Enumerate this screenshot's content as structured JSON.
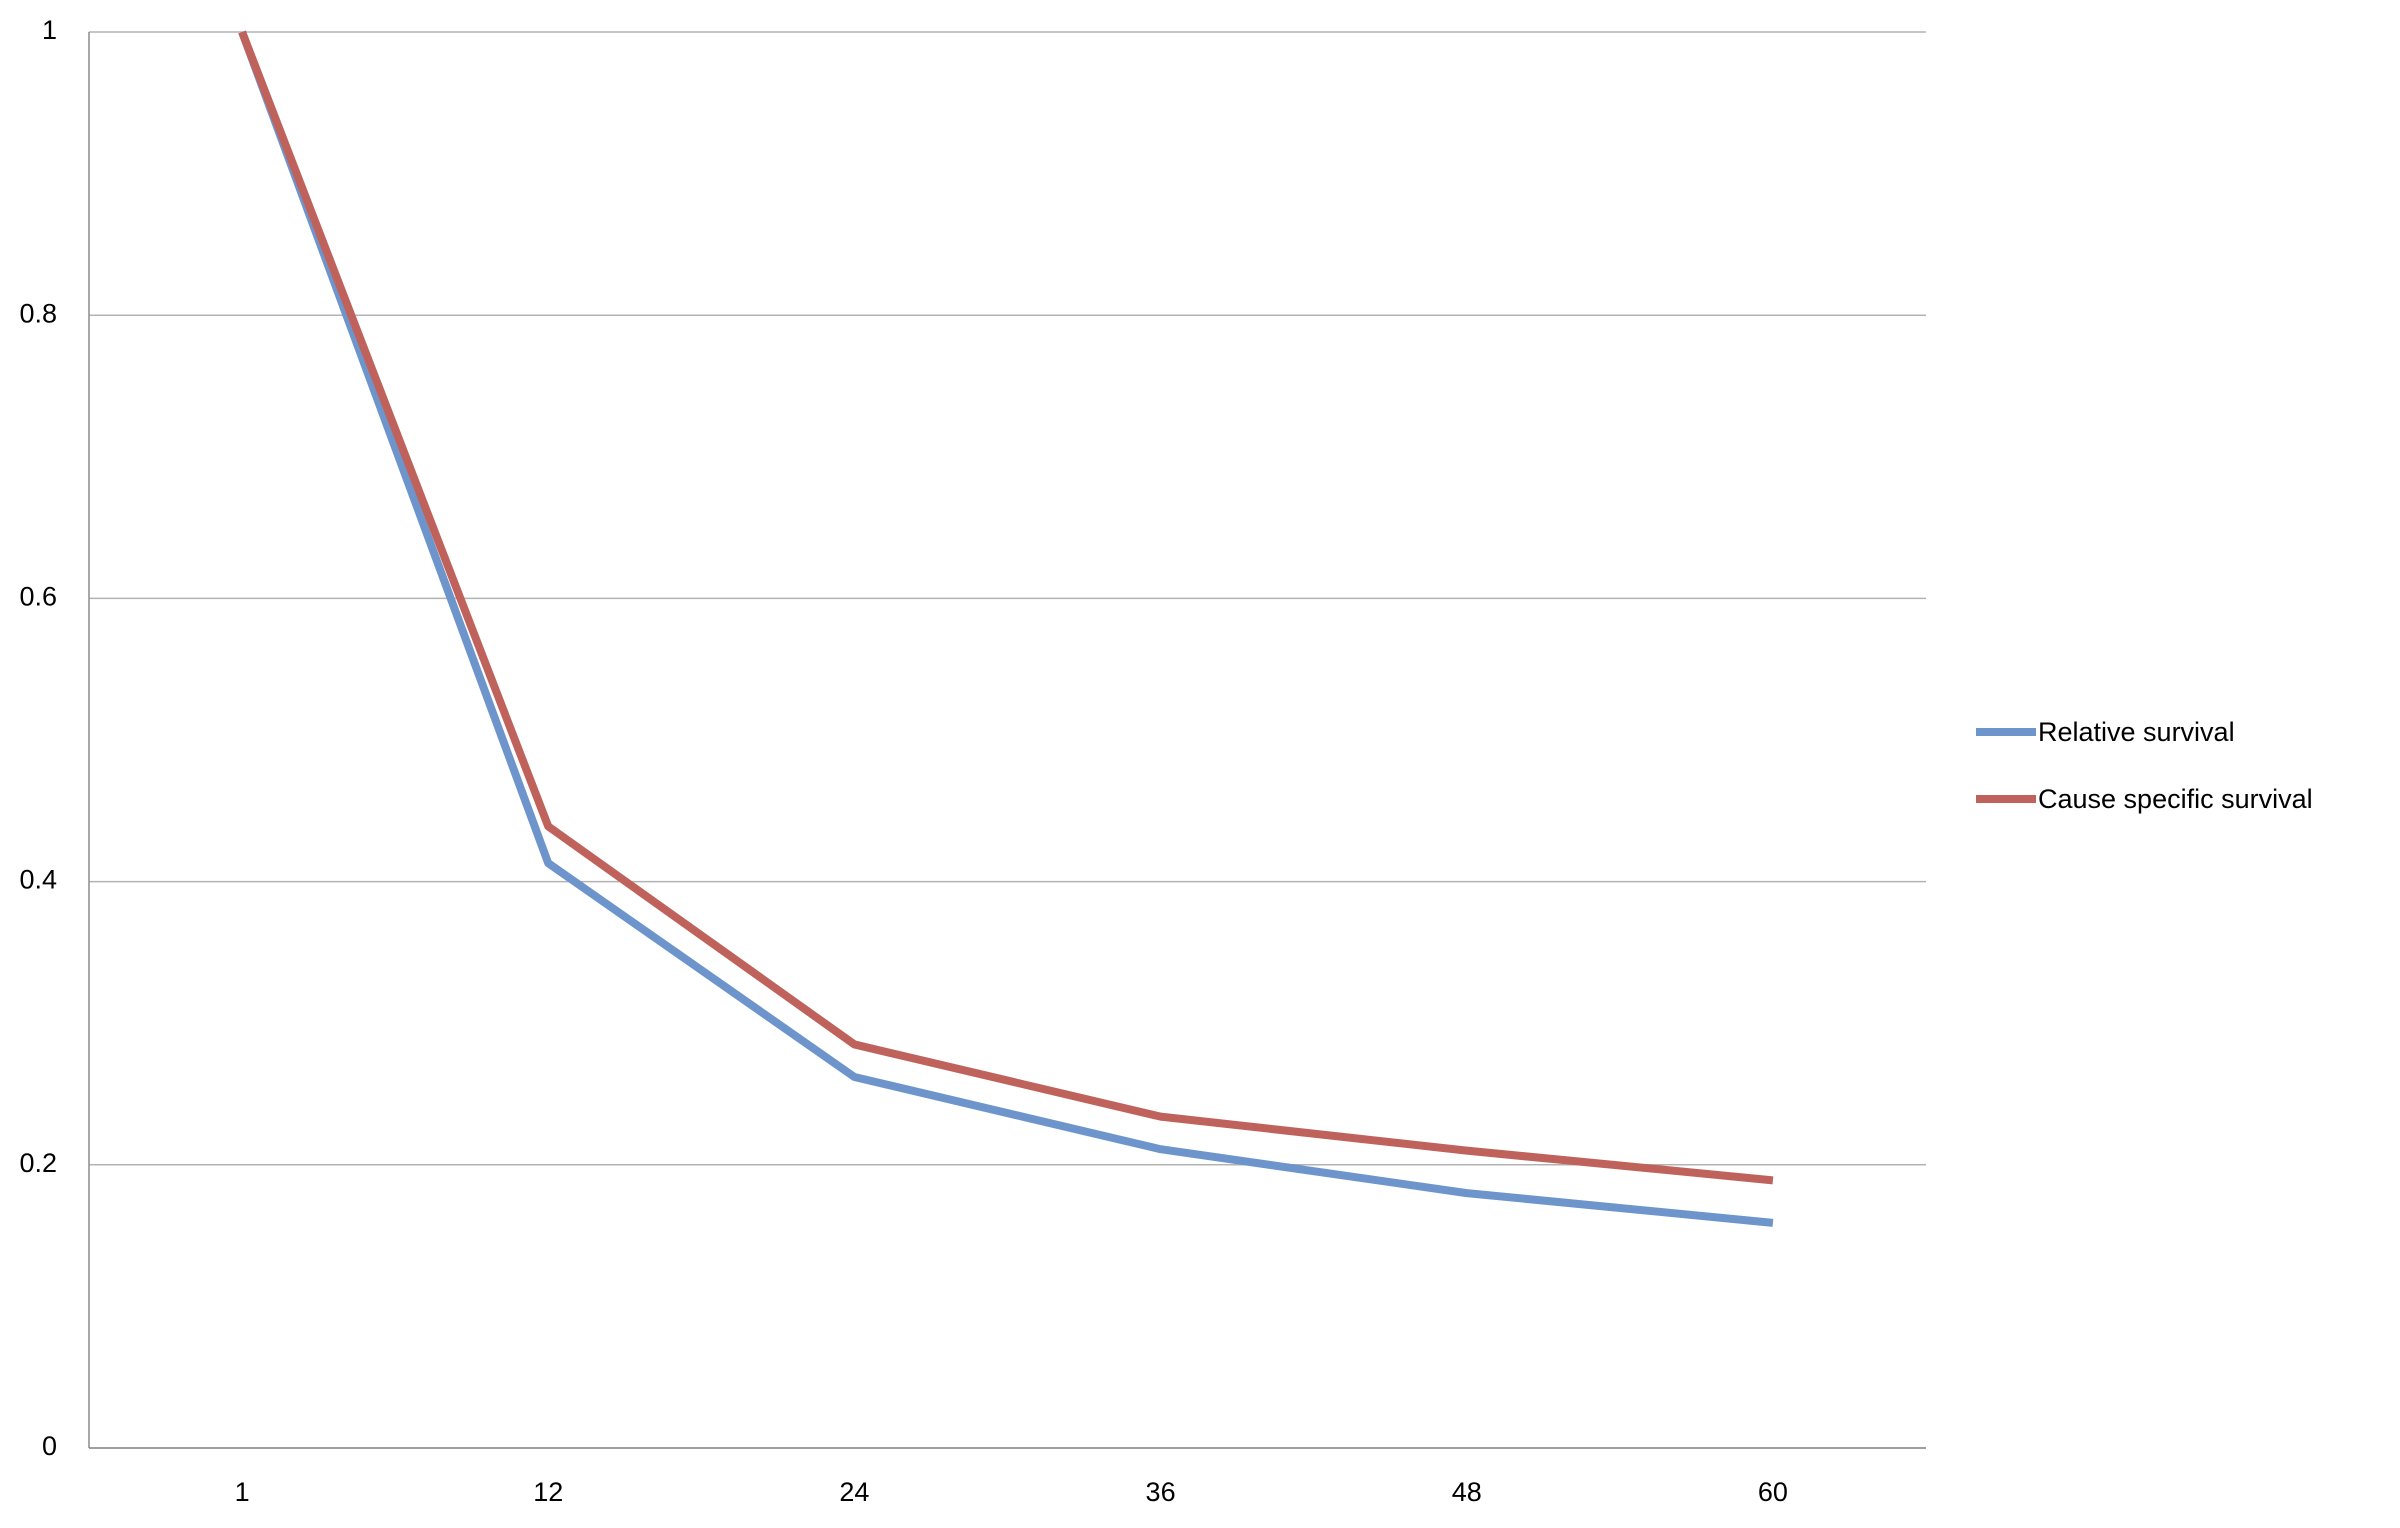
{
  "chart_data": {
    "type": "line",
    "categories": [
      "1",
      "12",
      "24",
      "36",
      "48",
      "60"
    ],
    "series": [
      {
        "name": "Relative survival",
        "color": "#6d95cc",
        "values": [
          1.0,
          0.413,
          0.262,
          0.211,
          0.18,
          0.159
        ]
      },
      {
        "name": "Cause specific survival",
        "color": "#c0625c",
        "values": [
          1.0,
          0.439,
          0.285,
          0.234,
          0.21,
          0.189
        ]
      }
    ],
    "ylim": [
      0,
      1
    ],
    "yticks": [
      0,
      0.2,
      0.4,
      0.6,
      0.8,
      1
    ],
    "grid": true,
    "legend": "right"
  }
}
